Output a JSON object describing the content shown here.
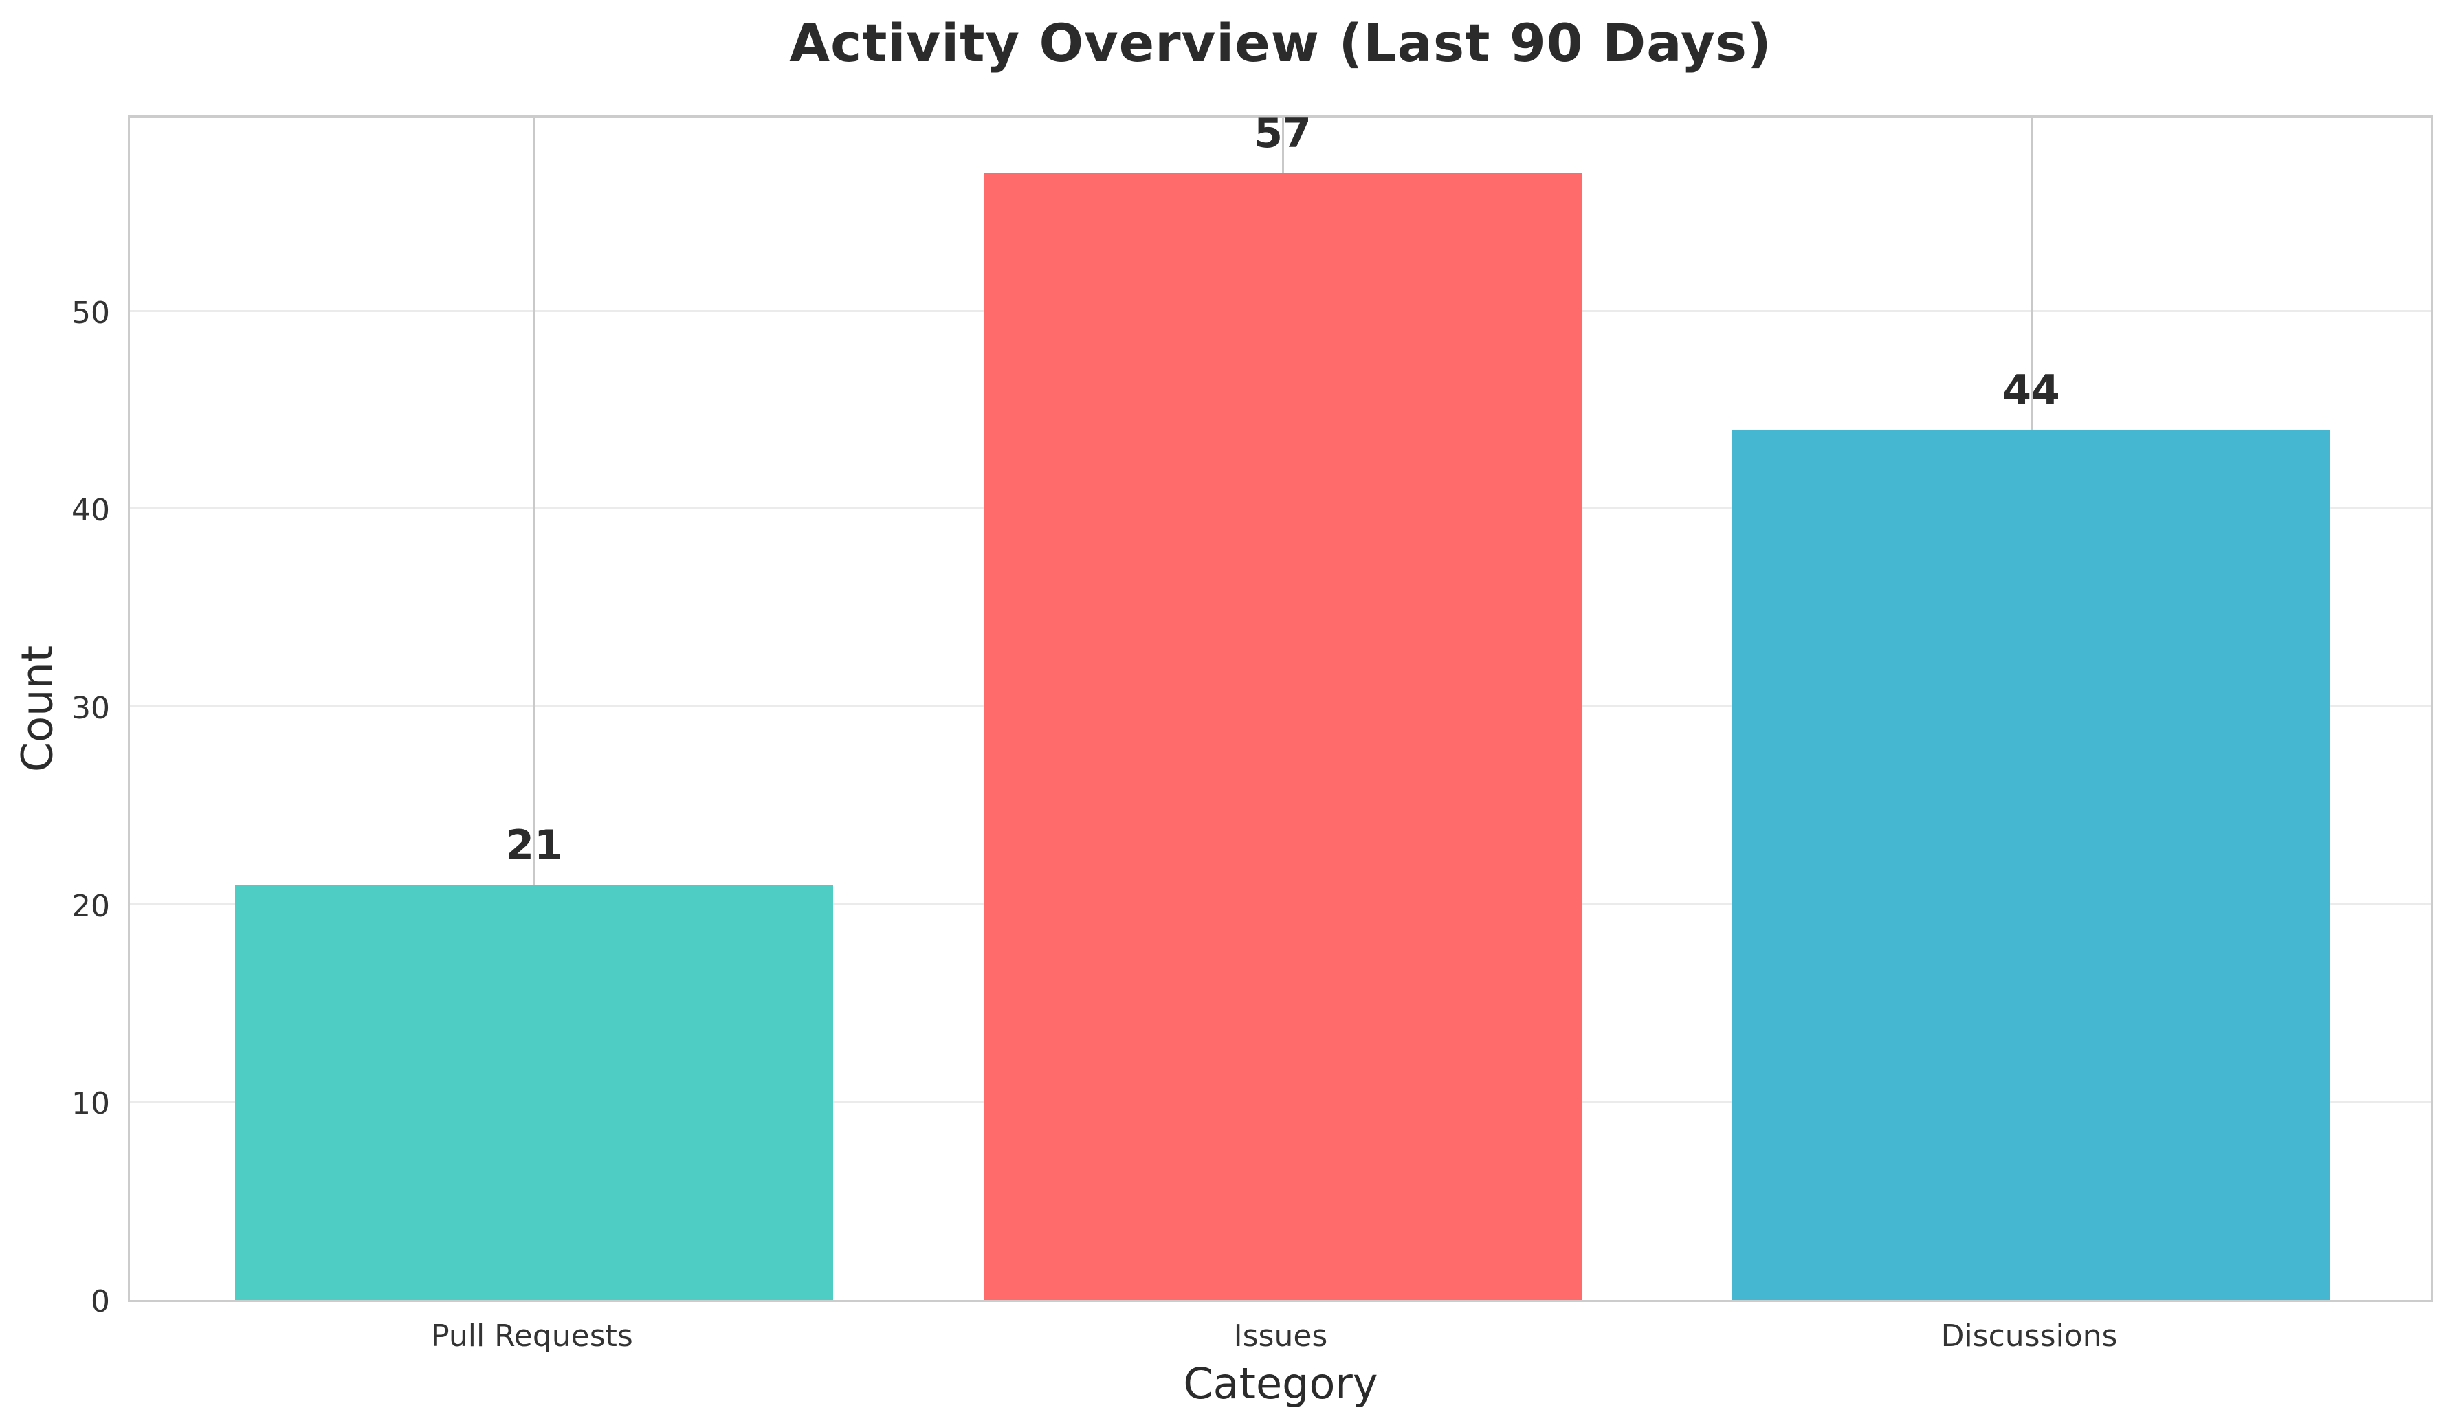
{
  "chart_data": {
    "type": "bar",
    "title": "Activity Overview (Last 90 Days)",
    "xlabel": "Category",
    "ylabel": "Count",
    "categories": [
      "Pull Requests",
      "Issues",
      "Discussions"
    ],
    "values": [
      21,
      57,
      44
    ],
    "value_labels": [
      "21",
      "57",
      "44"
    ],
    "bar_colors": [
      "#4ECDC4",
      "#FF6B6B",
      "#45B7D1"
    ],
    "ylim": [
      0,
      60
    ],
    "yticks": [
      0,
      10,
      20,
      30,
      40,
      50
    ],
    "grid": "both",
    "legend_position": "none",
    "styles": {
      "text_color": "#2b2b2b",
      "tick_color": "#333333",
      "spine_color": "#cccccc",
      "hgrid_color": "#ebebeb",
      "vgrid_color": "#c9c9c9",
      "background": "#ffffff"
    }
  }
}
